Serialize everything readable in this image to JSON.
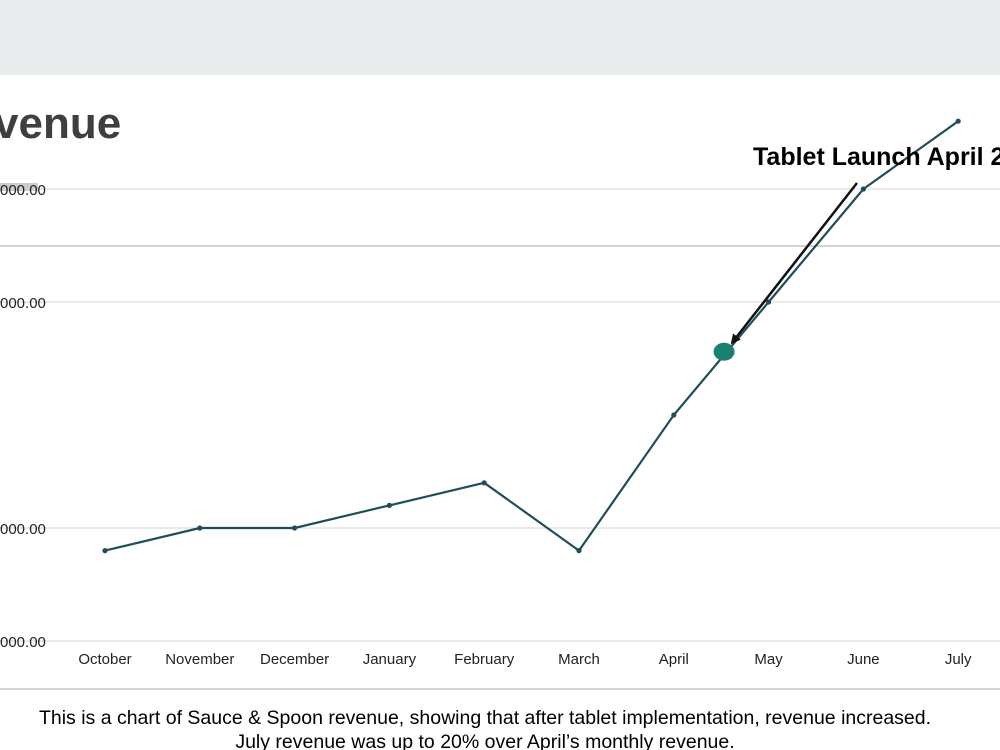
{
  "slide": {
    "title": "venue",
    "caption_line1": "This is a chart of Sauce & Spoon revenue, showing that after tablet implementation, revenue increased.",
    "caption_line2": "July revenue was up to 20% over April’s monthly revenue."
  },
  "chart_data": {
    "type": "line",
    "categories": [
      "October",
      "November",
      "December",
      "January",
      "February",
      "March",
      "April",
      "May",
      "June",
      "July"
    ],
    "x": [
      0,
      1,
      2,
      3,
      4,
      5,
      6,
      7,
      8,
      9
    ],
    "series": [
      {
        "values": [
          9900,
          10000,
          10000,
          10100,
          10200,
          9900,
          10500,
          11000,
          11500,
          11800
        ],
        "color": "#1f4e5a"
      }
    ],
    "y_tick_labels": [
      {
        "value": 11500,
        "label": "000.00"
      },
      {
        "value": 11000,
        "label": "000.00"
      },
      {
        "value": 10000,
        "label": "000.00"
      },
      {
        "value": 9500,
        "label": "000.00"
      }
    ],
    "ylim": [
      9500,
      12000
    ],
    "grid": true,
    "highlight": {
      "x": 6.53,
      "y": 10780,
      "color": "#1a8070"
    },
    "annotation": {
      "text": "Tablet Launch April 2",
      "target_x": 6.53,
      "target_y": 10780
    },
    "colors": {
      "line": "#1f4e5a",
      "highlight": "#1a8070",
      "grid": "#d6d6d6",
      "frame": "#b8b8b8"
    }
  }
}
